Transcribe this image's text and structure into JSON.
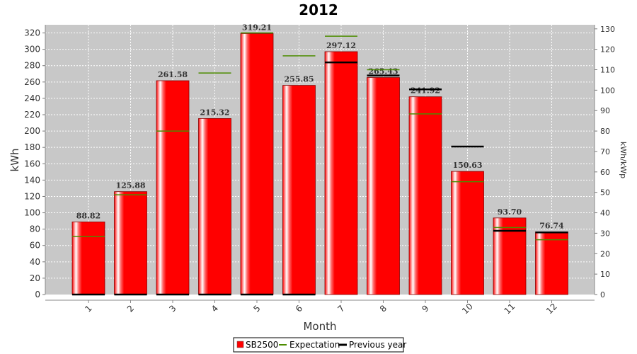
{
  "chart_data": {
    "type": "bar",
    "title": "2012",
    "xlabel": "Month",
    "ylabel": "kWh",
    "y2label": "kWh/kWp",
    "ylim": [
      0,
      330
    ],
    "y2lim": [
      0,
      132
    ],
    "yticks": [
      0,
      20,
      40,
      60,
      80,
      100,
      120,
      140,
      160,
      180,
      200,
      220,
      240,
      260,
      280,
      300,
      320
    ],
    "y2ticks": [
      0,
      10,
      20,
      30,
      40,
      50,
      60,
      70,
      80,
      90,
      100,
      110,
      120,
      130
    ],
    "categories": [
      "1",
      "2",
      "3",
      "4",
      "5",
      "6",
      "7",
      "8",
      "9",
      "10",
      "11",
      "12"
    ],
    "grid": true,
    "legend_position": "bottom",
    "series": [
      {
        "name": "SB2500",
        "kind": "bar",
        "color": "#ff0000",
        "values": [
          88.82,
          125.88,
          261.58,
          215.32,
          319.21,
          255.85,
          297.12,
          265.43,
          241.92,
          150.63,
          93.7,
          76.74
        ],
        "labels": [
          "88.82",
          "125.88",
          "261.58",
          "215.32",
          "319.21",
          "255.85",
          "297.12",
          "265.43",
          "241.92",
          "150.63",
          "93.70",
          "76.74"
        ]
      },
      {
        "name": "Expectation",
        "kind": "marker",
        "color": "#4c8c00",
        "values": [
          71,
          122,
          200,
          271,
          320,
          292,
          316,
          275,
          221,
          138,
          82,
          67
        ]
      },
      {
        "name": "Previous year",
        "kind": "marker",
        "color": "#000000",
        "values": [
          0,
          0,
          0,
          0,
          0,
          0,
          284,
          268,
          251,
          181,
          78,
          76
        ]
      }
    ]
  },
  "legend": {
    "items": [
      {
        "label": "SB2500",
        "color": "#ff0000"
      },
      {
        "label": "Expectation",
        "color": "#4c8c00"
      },
      {
        "label": "Previous year",
        "color": "#000000"
      }
    ]
  }
}
